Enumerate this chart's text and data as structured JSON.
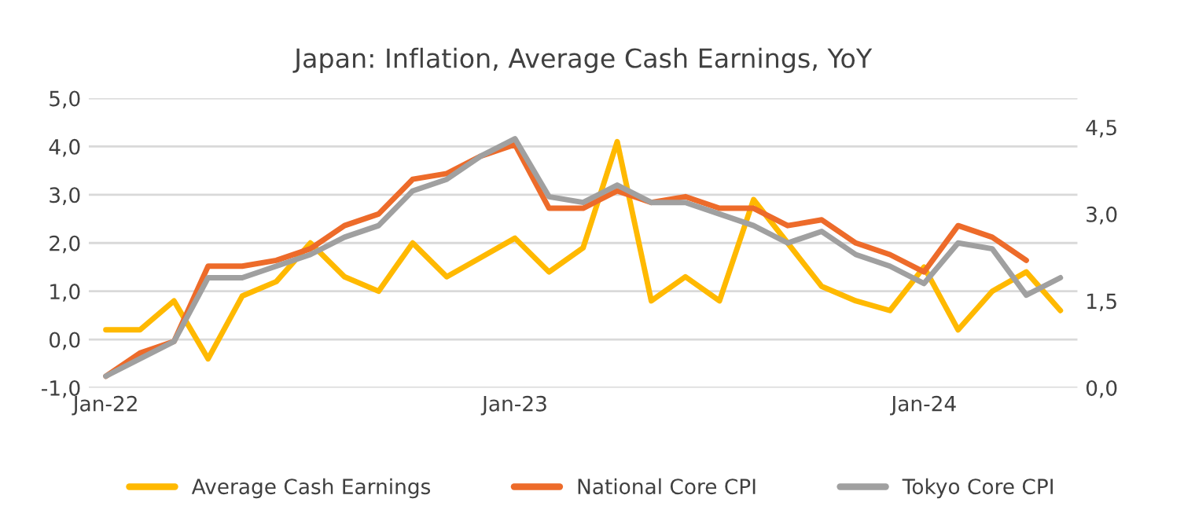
{
  "chart_data": {
    "type": "line",
    "title": "Japan: Inflation, Average Cash Earnings, YoY",
    "categories": [
      "Jan-22",
      null,
      null,
      null,
      null,
      null,
      null,
      null,
      null,
      null,
      null,
      null,
      "Jan-23",
      null,
      null,
      null,
      null,
      null,
      null,
      null,
      null,
      null,
      null,
      null,
      "Jan-24",
      null,
      null,
      null,
      null
    ],
    "series": [
      {
        "name": "Average Cash Earnings",
        "color": "#ffb900",
        "values": [
          0.2,
          0.2,
          0.8,
          -0.4,
          0.9,
          1.2,
          2.0,
          1.3,
          1.0,
          2.0,
          1.3,
          1.7,
          2.1,
          1.4,
          1.9,
          4.1,
          0.8,
          1.3,
          0.8,
          2.9,
          2.0,
          1.1,
          0.8,
          0.6,
          1.5,
          0.2,
          1.0,
          1.4,
          0.6
        ]
      },
      {
        "name": "National Core CPI",
        "color": "#ed6b2a",
        "axis": "y2",
        "values": [
          0.2,
          0.6,
          0.8,
          2.1,
          2.1,
          2.2,
          2.4,
          2.8,
          3.0,
          3.6,
          3.7,
          4.0,
          4.2,
          3.1,
          3.1,
          3.4,
          3.2,
          3.3,
          3.1,
          3.1,
          2.8,
          2.9,
          2.5,
          2.3,
          2.0,
          2.8,
          2.6,
          2.2,
          null
        ]
      },
      {
        "name": "Tokyo Core CPI",
        "color": "#a0a0a0",
        "axis": "y2",
        "values": [
          0.2,
          0.5,
          0.8,
          1.9,
          1.9,
          2.1,
          2.3,
          2.6,
          2.8,
          3.4,
          3.6,
          4.0,
          4.3,
          3.3,
          3.2,
          3.5,
          3.2,
          3.2,
          3.0,
          2.8,
          2.5,
          2.7,
          2.3,
          2.1,
          1.8,
          2.5,
          2.4,
          1.6,
          1.9
        ]
      }
    ],
    "ylim": [
      -1,
      5
    ],
    "yticks": [
      {
        "value": -1,
        "label": "-1,0"
      },
      {
        "value": 0,
        "label": "0,0"
      },
      {
        "value": 1,
        "label": "1,0"
      },
      {
        "value": 2,
        "label": "2,0"
      },
      {
        "value": 3,
        "label": "3,0"
      },
      {
        "value": 4,
        "label": "4,0"
      },
      {
        "value": 5,
        "label": "5,0"
      }
    ],
    "y2lim": [
      0,
      5
    ],
    "y2ticks": [
      {
        "value": 0,
        "label": "0,0"
      },
      {
        "value": 1.5,
        "label": "1,5"
      },
      {
        "value": 3,
        "label": "3,0"
      },
      {
        "value": 4.5,
        "label": "4,5"
      }
    ],
    "grid": "y",
    "legend": "bottom",
    "marker": "none",
    "line_style": "solid"
  }
}
